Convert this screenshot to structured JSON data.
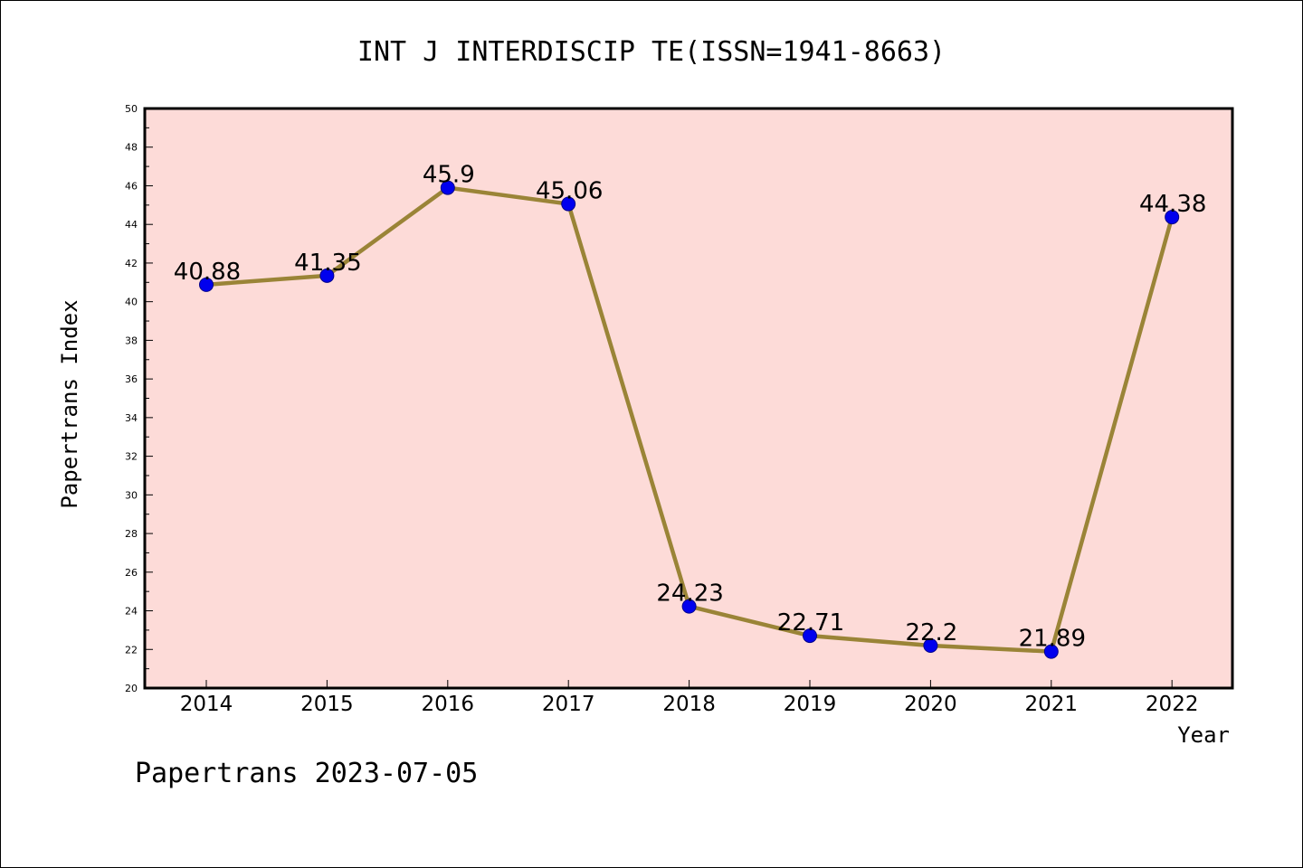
{
  "chart_data": {
    "type": "line",
    "title": "INT J INTERDISCIP TE(ISSN=1941-8663)",
    "xlabel": "Year",
    "ylabel": "Papertrans Index",
    "categories": [
      "2014",
      "2015",
      "2016",
      "2017",
      "2018",
      "2019",
      "2020",
      "2021",
      "2022"
    ],
    "series": [
      {
        "values": [
          40.88,
          41.35,
          45.9,
          45.06,
          24.23,
          22.71,
          22.2,
          21.89,
          44.38
        ],
        "labels": [
          "40.88",
          "41.35",
          "45.9",
          "45.06",
          "24.23",
          "22.71",
          "22.2",
          "21.89",
          "44.38"
        ]
      }
    ],
    "ylim": [
      20,
      50
    ],
    "yticks": [
      "20",
      "22",
      "24",
      "26",
      "28",
      "30",
      "32",
      "34",
      "36",
      "38",
      "40",
      "42",
      "44",
      "46",
      "48",
      "50"
    ],
    "grid": false,
    "colors": {
      "plot_background": "#fddbd8",
      "line": "#9a8437",
      "marker": "#0000ee"
    }
  },
  "footer": "Papertrans 2023-07-05"
}
